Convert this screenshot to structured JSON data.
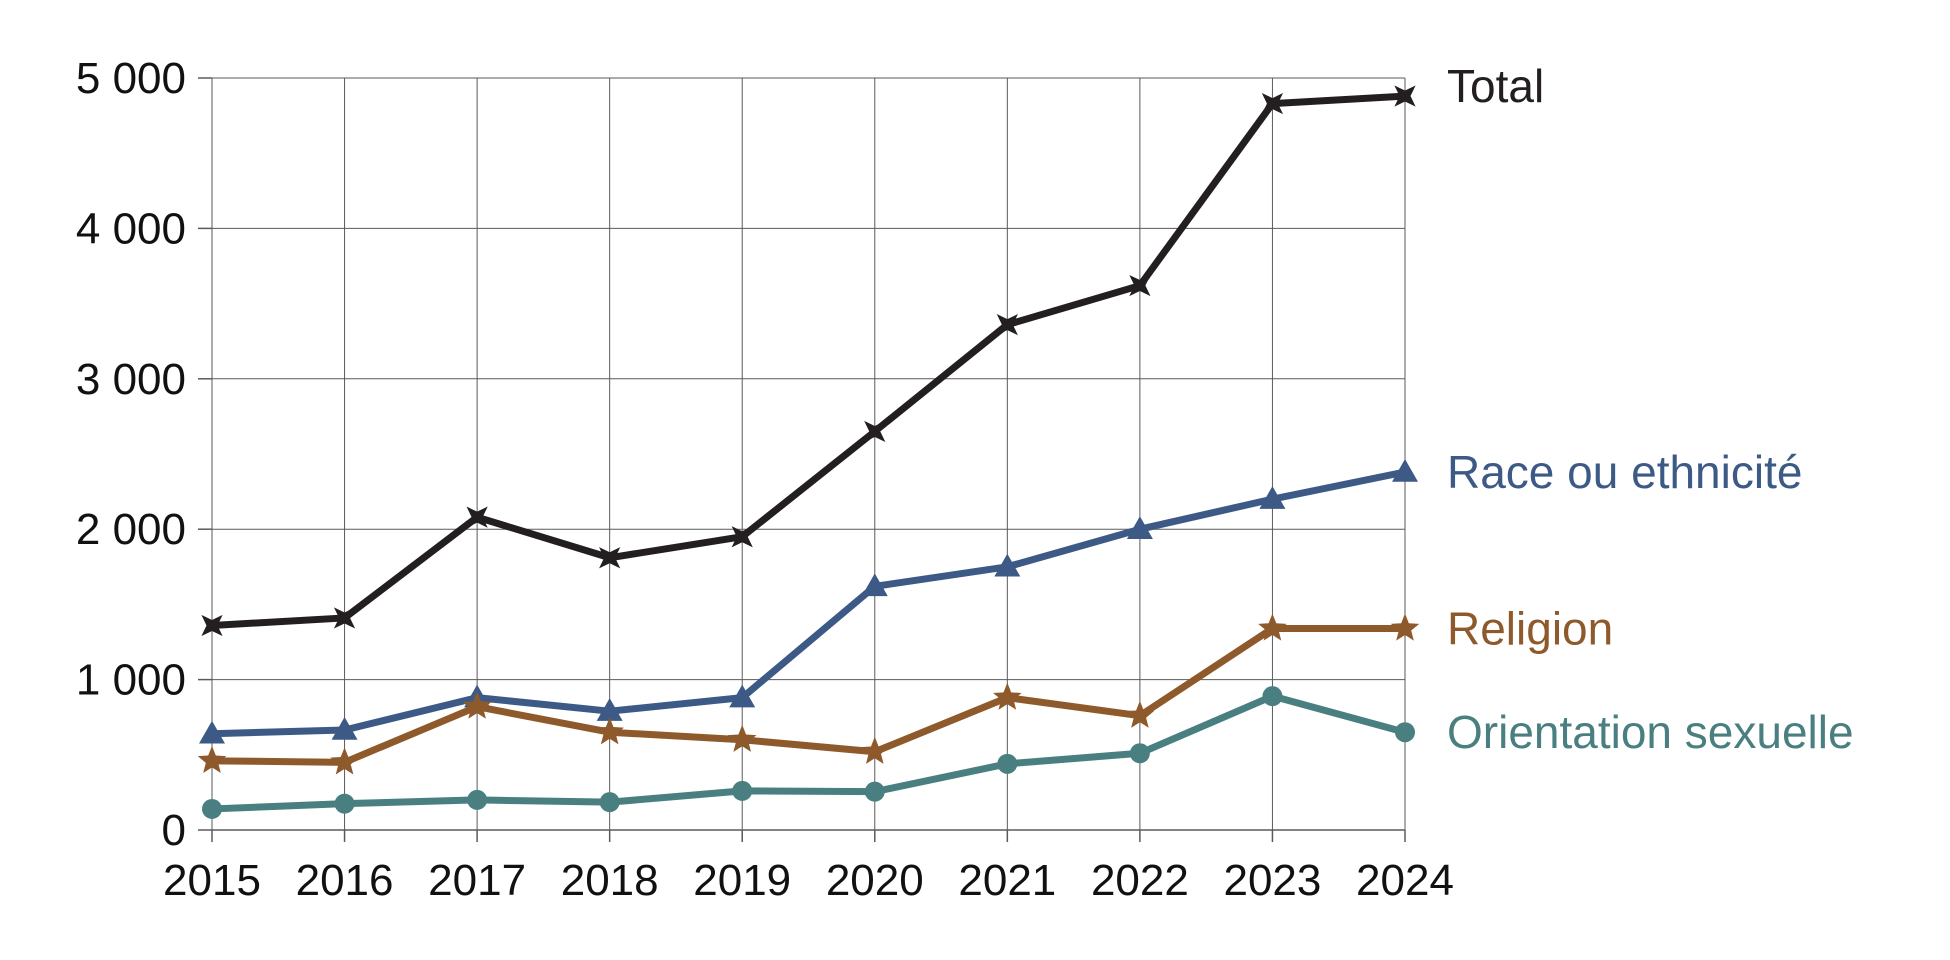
{
  "chart_data": {
    "type": "line",
    "x": [
      2015,
      2016,
      2017,
      2018,
      2019,
      2020,
      2021,
      2022,
      2023,
      2024
    ],
    "x_tick_labels": [
      "2015",
      "2016",
      "2017",
      "2018",
      "2019",
      "2020",
      "2021",
      "2022",
      "2023",
      "2024"
    ],
    "ylim": [
      0,
      5000
    ],
    "y_ticks": [
      0,
      1000,
      2000,
      3000,
      4000,
      5000
    ],
    "y_tick_labels": [
      "0",
      "1 000",
      "2 000",
      "3 000",
      "4 000",
      "5 000"
    ],
    "grid": true,
    "legend": "inline labels at right end of each series",
    "series": [
      {
        "name": "Total",
        "color": "#231f20",
        "marker": "star4",
        "values": [
          1360,
          1410,
          2080,
          1810,
          1950,
          2650,
          3360,
          3620,
          4830,
          4880
        ]
      },
      {
        "name": "Race ou ethnicité",
        "color": "#3d5a87",
        "marker": "triangle",
        "values": [
          640,
          665,
          880,
          790,
          880,
          1620,
          1750,
          2000,
          2200,
          2380
        ]
      },
      {
        "name": "Religion",
        "color": "#8f5a2b",
        "marker": "star5",
        "values": [
          460,
          450,
          820,
          650,
          600,
          520,
          880,
          760,
          1340,
          1340
        ]
      },
      {
        "name": "Orientation sexuelle",
        "color": "#4a7f81",
        "marker": "circle",
        "values": [
          140,
          175,
          200,
          185,
          260,
          255,
          440,
          510,
          890,
          650
        ]
      }
    ]
  }
}
